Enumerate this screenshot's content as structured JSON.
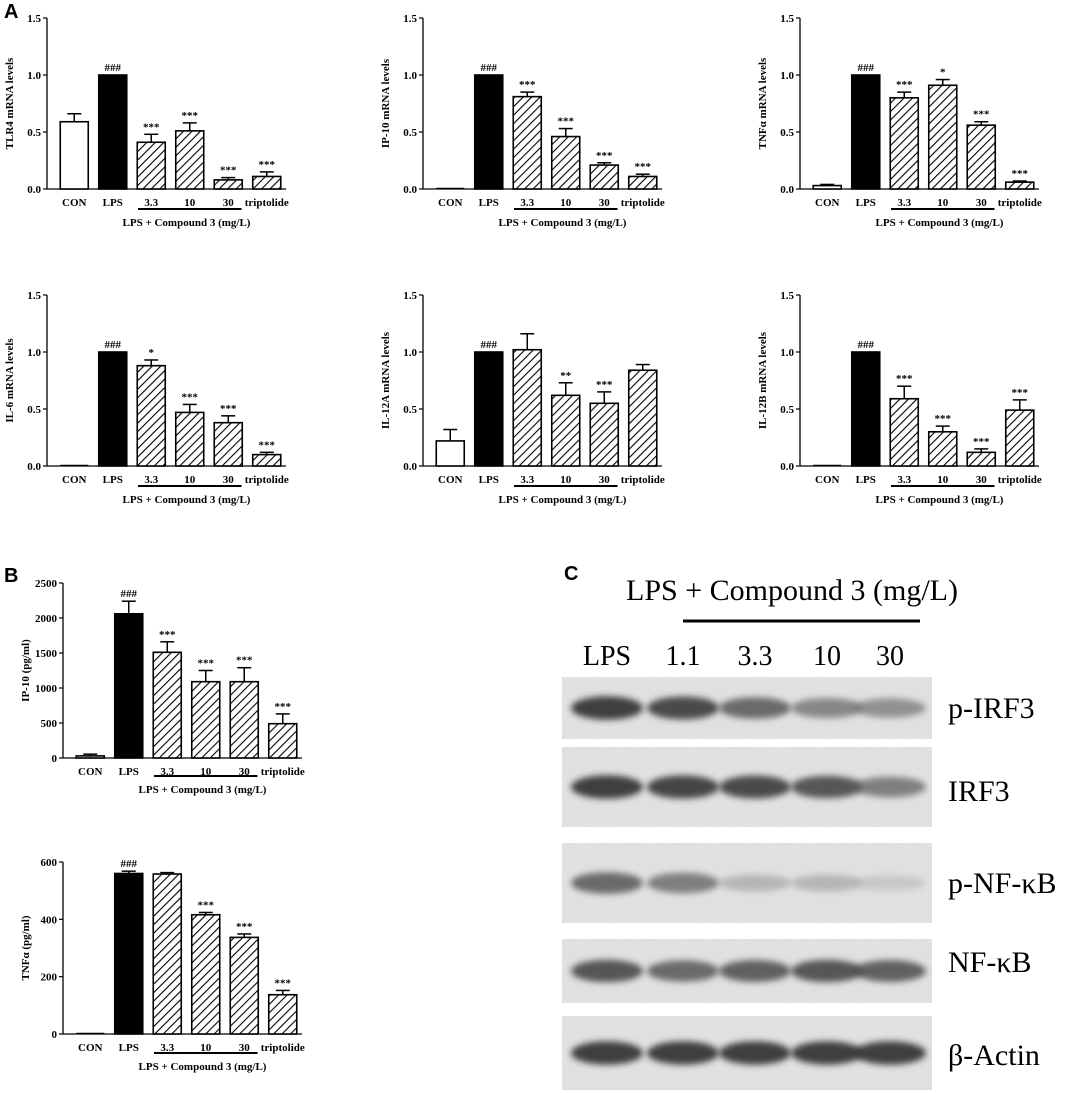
{
  "panels": {
    "a": "A",
    "b": "B",
    "c": "C"
  },
  "colors": {
    "bar_black": "#000000",
    "bar_white": "#ffffff",
    "hatch": "#000000"
  },
  "chart_data": [
    {
      "id": "tlr4",
      "type": "bar",
      "panel": "A",
      "ylabel": "TLR4 mRNA levels",
      "categories": [
        "CON",
        "LPS",
        "3.3",
        "10",
        "30",
        "triptolide"
      ],
      "group_label": "LPS + Compound 3 (mg/L)",
      "values": [
        0.59,
        1.0,
        0.41,
        0.51,
        0.08,
        0.11
      ],
      "errors": [
        0.07,
        0.0,
        0.07,
        0.07,
        0.02,
        0.04
      ],
      "significance": [
        "",
        "###",
        "***",
        "***",
        "***",
        "***"
      ],
      "fills": [
        "white",
        "black",
        "hatch",
        "hatch",
        "hatch",
        "hatch"
      ],
      "ylim": [
        0,
        1.5
      ],
      "yticks": [
        0.0,
        0.5,
        1.0,
        1.5
      ],
      "ytick_labels": [
        "0.0",
        "0.5",
        "1.0",
        "1.5"
      ]
    },
    {
      "id": "ip10_mrna",
      "type": "bar",
      "panel": "A",
      "ylabel": "IP-10 mRNA levels",
      "categories": [
        "CON",
        "LPS",
        "3.3",
        "10",
        "30",
        "triptolide"
      ],
      "group_label": "LPS + Compound 3 (mg/L)",
      "values": [
        0.0,
        1.0,
        0.81,
        0.46,
        0.21,
        0.11
      ],
      "errors": [
        0.0,
        0.0,
        0.04,
        0.07,
        0.02,
        0.02
      ],
      "significance": [
        "",
        "###",
        "***",
        "***",
        "***",
        "***"
      ],
      "fills": [
        "white",
        "black",
        "hatch",
        "hatch",
        "hatch",
        "hatch"
      ],
      "ylim": [
        0,
        1.5
      ],
      "yticks": [
        0.0,
        0.5,
        1.0,
        1.5
      ],
      "ytick_labels": [
        "0.0",
        "0.5",
        "1.0",
        "1.5"
      ]
    },
    {
      "id": "tnfa_mrna",
      "type": "bar",
      "panel": "A",
      "ylabel": "TNFα mRNA levels",
      "categories": [
        "CON",
        "LPS",
        "3.3",
        "10",
        "30",
        "triptolide"
      ],
      "group_label": "LPS + Compound 3 (mg/L)",
      "values": [
        0.03,
        1.0,
        0.8,
        0.91,
        0.56,
        0.06
      ],
      "errors": [
        0.01,
        0.0,
        0.05,
        0.05,
        0.03,
        0.01
      ],
      "significance": [
        "",
        "###",
        "***",
        "*",
        "***",
        "***"
      ],
      "fills": [
        "white",
        "black",
        "hatch",
        "hatch",
        "hatch",
        "hatch"
      ],
      "ylim": [
        0,
        1.5
      ],
      "yticks": [
        0.0,
        0.5,
        1.0,
        1.5
      ],
      "ytick_labels": [
        "0.0",
        "0.5",
        "1.0",
        "1.5"
      ]
    },
    {
      "id": "il6_mrna",
      "type": "bar",
      "panel": "A",
      "ylabel": "IL-6 mRNA levels",
      "categories": [
        "CON",
        "LPS",
        "3.3",
        "10",
        "30",
        "triptolide"
      ],
      "group_label": "LPS + Compound 3 (mg/L)",
      "values": [
        0.0,
        1.0,
        0.88,
        0.47,
        0.38,
        0.1
      ],
      "errors": [
        0.0,
        0.0,
        0.05,
        0.07,
        0.06,
        0.02
      ],
      "significance": [
        "",
        "###",
        "*",
        "***",
        "***",
        "***"
      ],
      "fills": [
        "white",
        "black",
        "hatch",
        "hatch",
        "hatch",
        "hatch"
      ],
      "ylim": [
        0,
        1.5
      ],
      "yticks": [
        0.0,
        0.5,
        1.0,
        1.5
      ],
      "ytick_labels": [
        "0.0",
        "0.5",
        "1.0",
        "1.5"
      ]
    },
    {
      "id": "il12a_mrna",
      "type": "bar",
      "panel": "A",
      "ylabel": "IL-12A mRNA levels",
      "categories": [
        "CON",
        "LPS",
        "3.3",
        "10",
        "30",
        "triptolide"
      ],
      "group_label": "LPS + Compound 3 (mg/L)",
      "values": [
        0.22,
        1.0,
        1.02,
        0.62,
        0.55,
        0.84
      ],
      "errors": [
        0.1,
        0.0,
        0.14,
        0.11,
        0.1,
        0.05
      ],
      "significance": [
        "",
        "###",
        "",
        "**",
        "***",
        ""
      ],
      "fills": [
        "white",
        "black",
        "hatch",
        "hatch",
        "hatch",
        "hatch"
      ],
      "ylim": [
        0,
        1.5
      ],
      "yticks": [
        0.0,
        0.5,
        1.0,
        1.5
      ],
      "ytick_labels": [
        "0.0",
        "0.5",
        "1.0",
        "1.5"
      ]
    },
    {
      "id": "il12b_mrna",
      "type": "bar",
      "panel": "A",
      "ylabel": "IL-12B mRNA levels",
      "categories": [
        "CON",
        "LPS",
        "3.3",
        "10",
        "30",
        "triptolide"
      ],
      "group_label": "LPS + Compound 3 (mg/L)",
      "values": [
        0.0,
        1.0,
        0.59,
        0.3,
        0.12,
        0.49
      ],
      "errors": [
        0.0,
        0.0,
        0.11,
        0.05,
        0.03,
        0.09
      ],
      "significance": [
        "",
        "###",
        "***",
        "***",
        "***",
        "***"
      ],
      "fills": [
        "white",
        "black",
        "hatch",
        "hatch",
        "hatch",
        "hatch"
      ],
      "ylim": [
        0,
        1.5
      ],
      "yticks": [
        0.0,
        0.5,
        1.0,
        1.5
      ],
      "ytick_labels": [
        "0.0",
        "0.5",
        "1.0",
        "1.5"
      ]
    },
    {
      "id": "ip10_protein",
      "type": "bar",
      "panel": "B",
      "ylabel": "IP-10 (pg/ml)",
      "categories": [
        "CON",
        "LPS",
        "3.3",
        "10",
        "30",
        "triptolide"
      ],
      "group_label": "LPS + Compound 3 (mg/L)",
      "values": [
        30,
        2060,
        1510,
        1090,
        1090,
        490
      ],
      "errors": [
        25,
        180,
        150,
        160,
        200,
        140
      ],
      "significance": [
        "",
        "###",
        "***",
        "***",
        "***",
        "***"
      ],
      "fills": [
        "white",
        "black",
        "hatch",
        "hatch",
        "hatch",
        "hatch"
      ],
      "ylim": [
        0,
        2500
      ],
      "yticks": [
        0,
        500,
        1000,
        1500,
        2000,
        2500
      ],
      "ytick_labels": [
        "0",
        "500",
        "1000",
        "1500",
        "2000",
        "2500"
      ]
    },
    {
      "id": "tnfa_protein",
      "type": "bar",
      "panel": "B",
      "ylabel": "TNFα (pg/ml)",
      "categories": [
        "CON",
        "LPS",
        "3.3",
        "10",
        "30",
        "triptolide"
      ],
      "group_label": "LPS + Compound 3 (mg/L)",
      "values": [
        0,
        560,
        558,
        416,
        337,
        137
      ],
      "errors": [
        0,
        8,
        5,
        8,
        12,
        15
      ],
      "significance": [
        "",
        "###",
        "",
        "***",
        "***",
        "***"
      ],
      "fills": [
        "white",
        "black",
        "hatch",
        "hatch",
        "hatch",
        "hatch"
      ],
      "ylim": [
        0,
        600
      ],
      "yticks": [
        0,
        200,
        400,
        600
      ],
      "ytick_labels": [
        "0",
        "200",
        "400",
        "600"
      ]
    }
  ],
  "blot": {
    "header": "LPS + Compound 3 (mg/L)",
    "lanes": [
      "LPS",
      "1.1",
      "3.3",
      "10",
      "30"
    ],
    "rows": [
      {
        "label": "p-IRF3",
        "intensity": [
          0.95,
          0.9,
          0.75,
          0.6,
          0.55
        ]
      },
      {
        "label": "IRF3",
        "intensity": [
          0.95,
          0.92,
          0.9,
          0.85,
          0.65
        ]
      },
      {
        "label": "p-NF-κB",
        "intensity": [
          0.75,
          0.65,
          0.3,
          0.3,
          0.15
        ]
      },
      {
        "label": "NF-κB",
        "intensity": [
          0.85,
          0.75,
          0.8,
          0.85,
          0.8
        ]
      },
      {
        "label": "β-Actin",
        "intensity": [
          0.95,
          0.95,
          0.95,
          0.95,
          0.95
        ]
      }
    ]
  }
}
